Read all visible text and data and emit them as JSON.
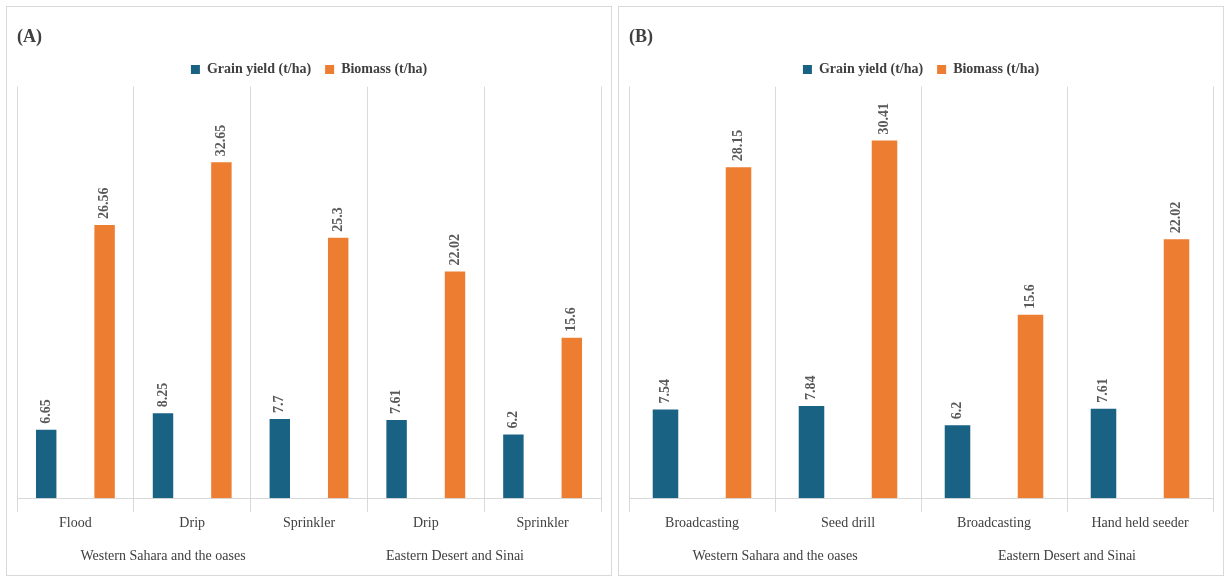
{
  "chart_data": [
    {
      "type": "bar",
      "title": "(A)",
      "categories": [
        "Flood",
        "Drip",
        "Sprinkler",
        "Drip",
        "Sprinkler"
      ],
      "series": [
        {
          "name": "Grain yield (t/ha)",
          "color": "#1a6283",
          "values": [
            6.65,
            8.25,
            7.7,
            7.61,
            6.2
          ]
        },
        {
          "name": "Biomass (t/ha)",
          "color": "#ed7d31",
          "values": [
            26.56,
            32.65,
            25.3,
            22.02,
            15.6
          ]
        }
      ],
      "data_labels": true,
      "legend": "top",
      "grid": "x",
      "tick_labels": "x",
      "annotations": [
        "Western Sahara and the oases",
        "Eastern Desert and Sinai"
      ]
    },
    {
      "type": "bar",
      "title": "(B)",
      "categories": [
        "Broadcasting",
        "Seed drill",
        "Broadcasting",
        "Hand held seeder"
      ],
      "series": [
        {
          "name": "Grain yield (t/ha)",
          "color": "#1a6283",
          "values": [
            7.54,
            7.84,
            6.2,
            7.61
          ]
        },
        {
          "name": "Biomass (t/ha)",
          "color": "#ed7d31",
          "values": [
            28.15,
            30.41,
            15.6,
            22.02
          ]
        }
      ],
      "data_labels": true,
      "legend": "top",
      "grid": "x",
      "tick_labels": "x",
      "annotations": [
        "Western Sahara and the oases",
        "Eastern Desert and Sinai"
      ]
    }
  ]
}
